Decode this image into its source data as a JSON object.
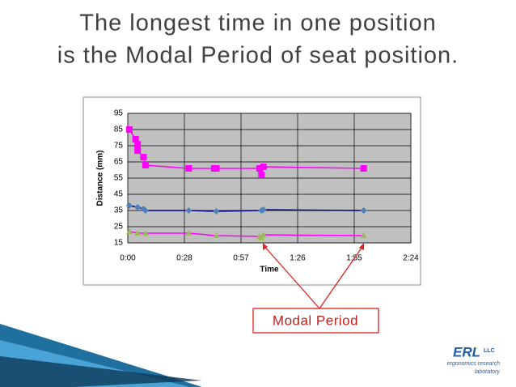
{
  "title_lines": [
    "The longest time in one position",
    "is the Modal Period of seat position."
  ],
  "logo": {
    "main": "ERL",
    "suffix": "LLC",
    "line1": "ergonomics research",
    "line2": "laboratory"
  },
  "chart_data": {
    "type": "line",
    "x_label": "Time",
    "y_label": "Distance (mm)",
    "annotation": "Modal Period",
    "xlim": [
      0,
      144
    ],
    "ylim": [
      15,
      95
    ],
    "xticks": [
      {
        "value": 0,
        "label": "0:00"
      },
      {
        "value": 28.8,
        "label": "0:28"
      },
      {
        "value": 57.6,
        "label": "0:57"
      },
      {
        "value": 86.4,
        "label": "1:26"
      },
      {
        "value": 115.2,
        "label": "1:55"
      },
      {
        "value": 144,
        "label": "2:24"
      }
    ],
    "yticks": [
      15,
      25,
      35,
      45,
      55,
      65,
      75,
      85,
      95
    ],
    "grid": true,
    "plot_background": "#c0c0c0",
    "series": [
      {
        "color": "#ff00ff",
        "marker_color": "#ff00ff",
        "marker": "square",
        "x": [
          0.8,
          4,
          5,
          5,
          8,
          9,
          31,
          44,
          45,
          67,
          68,
          69,
          120
        ],
        "values": [
          85,
          79,
          76,
          72,
          68,
          63,
          61,
          61,
          61,
          61,
          57,
          62,
          61
        ]
      },
      {
        "color": "#000080",
        "marker_color": "#4f81bd",
        "marker": "diamond",
        "x": [
          0.8,
          5,
          8,
          9,
          31,
          45,
          68,
          69,
          120
        ],
        "values": [
          38,
          37,
          36,
          35,
          35,
          34.5,
          35,
          35.5,
          35
        ]
      },
      {
        "color": "#ff00ff",
        "marker_color": "#9bbb59",
        "marker": "triangle",
        "x": [
          0.8,
          5,
          9,
          31,
          45,
          67,
          68,
          69,
          120
        ],
        "values": [
          22,
          21,
          21,
          21,
          19.5,
          19,
          18,
          20,
          19.5
        ]
      }
    ]
  }
}
